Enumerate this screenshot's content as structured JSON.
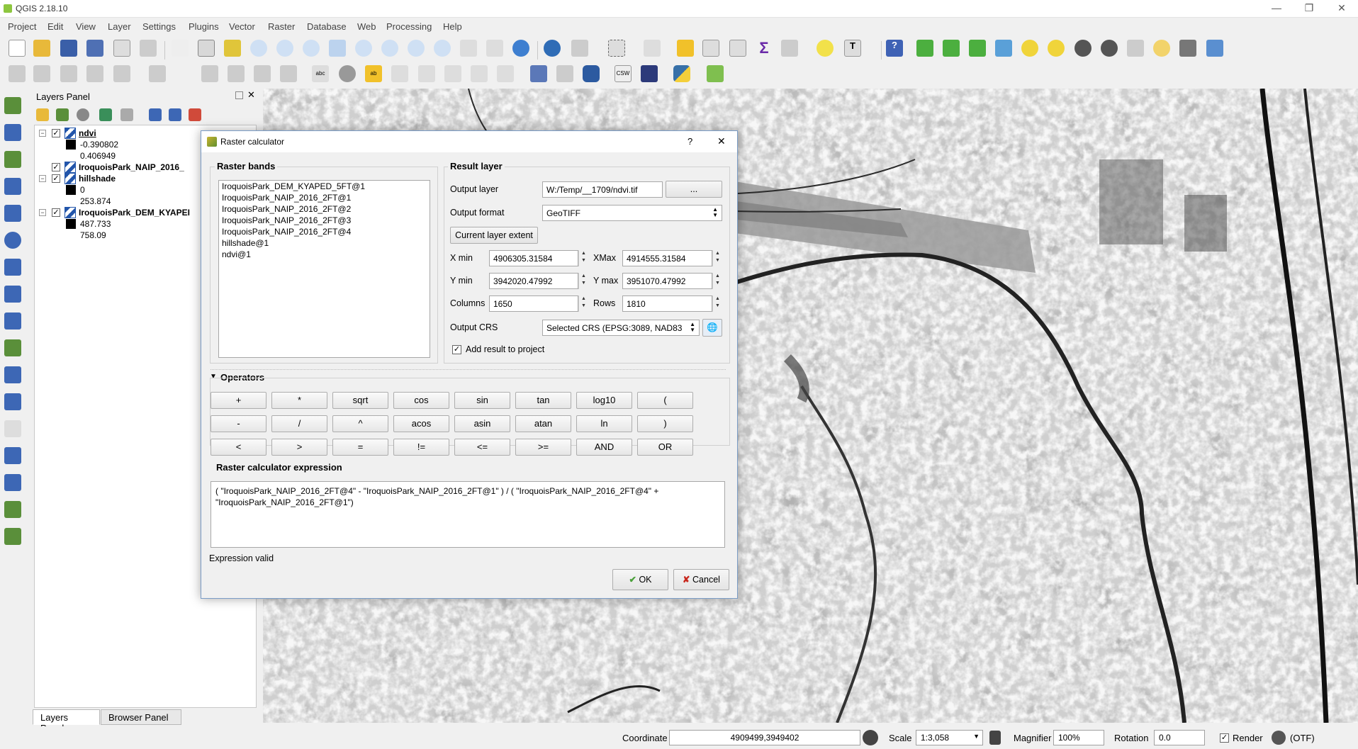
{
  "window": {
    "title": "QGIS 2.18.10",
    "minimize": "—",
    "restore": "❐",
    "close": "✕"
  },
  "menu": [
    "Project",
    "Edit",
    "View",
    "Layer",
    "Settings",
    "Plugins",
    "Vector",
    "Raster",
    "Database",
    "Web",
    "Processing",
    "Help"
  ],
  "layers_panel": {
    "title": "Layers Panel",
    "layers": [
      {
        "name": "ndvi",
        "checked": true,
        "min": "-0.390802",
        "max": "0.406949"
      },
      {
        "name": "IroquoisPark_NAIP_2016_",
        "checked": true
      },
      {
        "name": "hillshade",
        "checked": true,
        "min": "0",
        "max": "253.874"
      },
      {
        "name": "IroquoisPark_DEM_KYAPEI",
        "checked": true,
        "min": "487.733",
        "max": "758.09"
      }
    ],
    "tabs": [
      "Layers Panel",
      "Browser Panel"
    ]
  },
  "dialog": {
    "title": "Raster calculator",
    "help": "?",
    "close": "✕",
    "raster_bands_label": "Raster bands",
    "bands": [
      "IroquoisPark_DEM_KYAPED_5FT@1",
      "IroquoisPark_NAIP_2016_2FT@1",
      "IroquoisPark_NAIP_2016_2FT@2",
      "IroquoisPark_NAIP_2016_2FT@3",
      "IroquoisPark_NAIP_2016_2FT@4",
      "hillshade@1",
      "ndvi@1"
    ],
    "result_layer_label": "Result layer",
    "output_layer_label": "Output layer",
    "output_layer_value": "W:/Temp/__1709/ndvi.tif",
    "browse_label": "...",
    "output_format_label": "Output format",
    "output_format_value": "GeoTIFF",
    "current_extent_label": "Current layer extent",
    "xmin_label": "X min",
    "xmin_value": "4906305.31584",
    "xmax_label": "XMax",
    "xmax_value": "4914555.31584",
    "ymin_label": "Y min",
    "ymin_value": "3942020.47992",
    "ymax_label": "Y max",
    "ymax_value": "3951070.47992",
    "columns_label": "Columns",
    "columns_value": "1650",
    "rows_label": "Rows",
    "rows_value": "1810",
    "output_crs_label": "Output CRS",
    "output_crs_value": "Selected CRS (EPSG:3089, NAD83",
    "add_result_label": "Add result to project",
    "add_result_checked": true,
    "operators_label": "Operators",
    "operators": [
      [
        "+",
        "*",
        "sqrt",
        "cos",
        "sin",
        "tan",
        "log10",
        "("
      ],
      [
        "-",
        "/",
        "^",
        "acos",
        "asin",
        "atan",
        "ln",
        ")"
      ],
      [
        "<",
        ">",
        "=",
        "!=",
        "<=",
        ">=",
        "AND",
        "OR"
      ]
    ],
    "expression_label": "Raster calculator expression",
    "expression": "( \"IroquoisPark_NAIP_2016_2FT@4\" - \"IroquoisPark_NAIP_2016_2FT@1\" ) / ( \"IroquoisPark_NAIP_2016_2FT@4\" + \"IroquoisPark_NAIP_2016_2FT@1\")",
    "status": "Expression valid",
    "ok_label": "OK",
    "cancel_label": "Cancel"
  },
  "status_bar": {
    "coordinate_label": "Coordinate",
    "coordinate_value": "4909499,3949402",
    "scale_label": "Scale",
    "scale_value": "1:3,058",
    "magnifier_label": "Magnifier",
    "magnifier_value": "100%",
    "rotation_label": "Rotation",
    "rotation_value": "0.0",
    "render_label": "Render",
    "crs_label": "(OTF)"
  }
}
